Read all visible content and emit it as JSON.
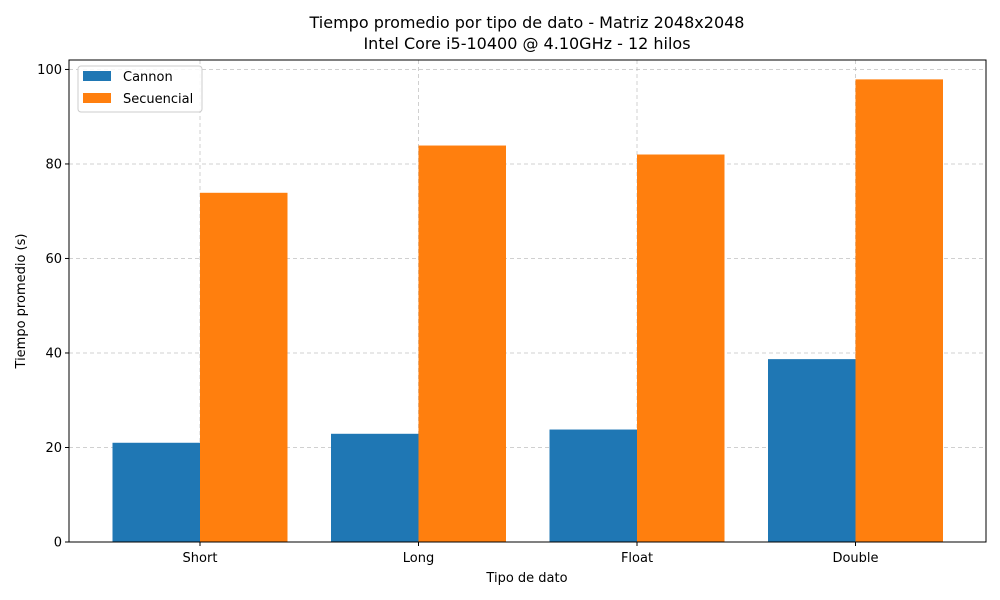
{
  "chart_data": {
    "type": "bar",
    "title": "Tiempo promedio por tipo de dato - Matriz 2048x2048",
    "subtitle": "Intel Core i5-10400 @ 4.10GHz - 12 hilos",
    "xlabel": "Tipo de dato",
    "ylabel": "Tiempo promedio (s)",
    "categories": [
      "Short",
      "Long",
      "Float",
      "Double"
    ],
    "series": [
      {
        "name": "Cannon",
        "color": "#1f77b4",
        "values": [
          21.0,
          22.9,
          23.8,
          38.7
        ]
      },
      {
        "name": "Secuencial",
        "color": "#ff7f0e",
        "values": [
          73.9,
          83.9,
          82.0,
          97.9
        ]
      }
    ],
    "ylim": [
      0,
      102
    ],
    "yticks": [
      0,
      20,
      40,
      60,
      80,
      100
    ],
    "grid": true,
    "legend_position": "top-left"
  }
}
